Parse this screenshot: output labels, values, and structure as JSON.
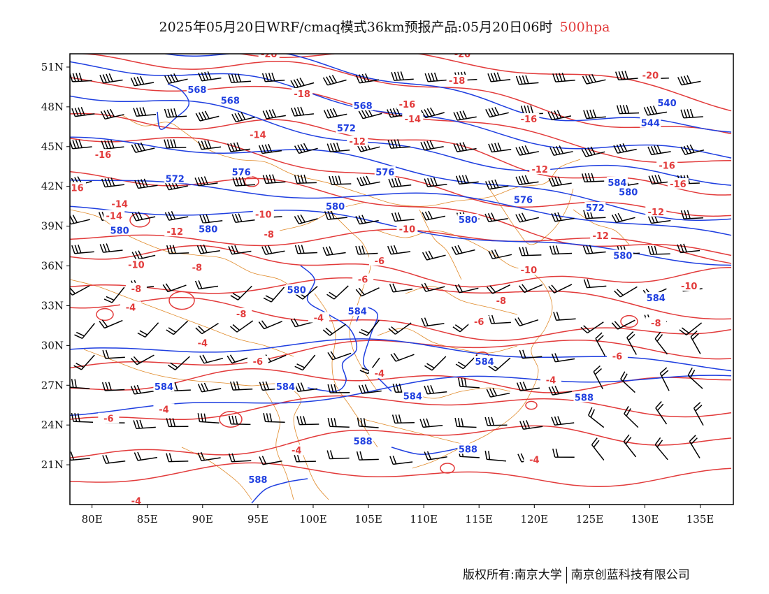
{
  "title": {
    "main": "2025年05月20日WRF/cmaq模式36km预报产品:05月20日06时",
    "level": "500hpa",
    "level_color": "#e23b3b"
  },
  "axes": {
    "lon_ticks": [
      "80E",
      "85E",
      "90E",
      "95E",
      "100E",
      "105E",
      "110E",
      "115E",
      "120E",
      "125E",
      "130E",
      "135E"
    ],
    "lat_ticks": [
      "51N",
      "48N",
      "45N",
      "42N",
      "39N",
      "36N",
      "33N",
      "30N",
      "27N",
      "24N",
      "21N"
    ],
    "lon_range": [
      78,
      138
    ],
    "lat_range": [
      18,
      52
    ]
  },
  "colors": {
    "height_contour": "#1f3fe0",
    "temperature_contour": "#e23b3b",
    "borders": "#e08a2a",
    "wind_barbs": "#000000"
  },
  "height_labels": [
    {
      "text": "568",
      "lon": 89.5,
      "lat": 49.3
    },
    {
      "text": "568",
      "lon": 92.5,
      "lat": 48.5
    },
    {
      "text": "568",
      "lon": 104.5,
      "lat": 48.1
    },
    {
      "text": "572",
      "lon": 103,
      "lat": 46.4
    },
    {
      "text": "572",
      "lon": 87.5,
      "lat": 42.6
    },
    {
      "text": "576",
      "lon": 93.5,
      "lat": 43.1
    },
    {
      "text": "576",
      "lon": 106.5,
      "lat": 43.1
    },
    {
      "text": "580",
      "lon": 102,
      "lat": 40.5
    },
    {
      "text": "580",
      "lon": 82.5,
      "lat": 38.7
    },
    {
      "text": "580",
      "lon": 90.5,
      "lat": 38.8
    },
    {
      "text": "576",
      "lon": 119,
      "lat": 41
    },
    {
      "text": "580",
      "lon": 114,
      "lat": 39.5
    },
    {
      "text": "584",
      "lon": 127.5,
      "lat": 42.3
    },
    {
      "text": "580",
      "lon": 128.5,
      "lat": 41.6
    },
    {
      "text": "572",
      "lon": 125.5,
      "lat": 40.4
    },
    {
      "text": "580",
      "lon": 128,
      "lat": 36.8
    },
    {
      "text": "544",
      "lon": 130.5,
      "lat": 46.8
    },
    {
      "text": "540",
      "lon": 132,
      "lat": 48.3
    },
    {
      "text": "580",
      "lon": 98.5,
      "lat": 34.2
    },
    {
      "text": "584",
      "lon": 104,
      "lat": 32.6
    },
    {
      "text": "584",
      "lon": 131,
      "lat": 33.6
    },
    {
      "text": "584",
      "lon": 115.5,
      "lat": 28.8
    },
    {
      "text": "584",
      "lon": 86.5,
      "lat": 26.9
    },
    {
      "text": "584",
      "lon": 97.5,
      "lat": 26.9
    },
    {
      "text": "584",
      "lon": 109,
      "lat": 26.2
    },
    {
      "text": "588",
      "lon": 124.5,
      "lat": 26.1
    },
    {
      "text": "588",
      "lon": 104.5,
      "lat": 22.8
    },
    {
      "text": "588",
      "lon": 114,
      "lat": 22.2
    },
    {
      "text": "588",
      "lon": 95,
      "lat": 19.9
    }
  ],
  "temperature_labels": [
    {
      "text": "-20",
      "lon": 96,
      "lat": 52
    },
    {
      "text": "-20",
      "lon": 113.5,
      "lat": 52
    },
    {
      "text": "-20",
      "lon": 130.5,
      "lat": 50.4
    },
    {
      "text": "-18",
      "lon": 99,
      "lat": 49
    },
    {
      "text": "-18",
      "lon": 113,
      "lat": 50
    },
    {
      "text": "-16",
      "lon": 108.5,
      "lat": 48.2
    },
    {
      "text": "-14",
      "lon": 109,
      "lat": 47.1
    },
    {
      "text": "-16",
      "lon": 119.5,
      "lat": 47.1
    },
    {
      "text": "-14",
      "lon": 95,
      "lat": 45.9
    },
    {
      "text": "-12",
      "lon": 104,
      "lat": 45.4
    },
    {
      "text": "-16",
      "lon": 81,
      "lat": 44.4
    },
    {
      "text": "-12",
      "lon": 120.5,
      "lat": 43.3
    },
    {
      "text": "-16",
      "lon": 132,
      "lat": 43.6
    },
    {
      "text": "-16",
      "lon": 133,
      "lat": 42.2
    },
    {
      "text": "-16",
      "lon": 78.5,
      "lat": 41.9
    },
    {
      "text": "-14",
      "lon": 82.5,
      "lat": 40.7
    },
    {
      "text": "-14",
      "lon": 82,
      "lat": 39.8
    },
    {
      "text": "-10",
      "lon": 95.5,
      "lat": 39.9
    },
    {
      "text": "-12",
      "lon": 131,
      "lat": 40.1
    },
    {
      "text": "-12",
      "lon": 87.5,
      "lat": 38.6
    },
    {
      "text": "-8",
      "lon": 96,
      "lat": 38.4
    },
    {
      "text": "-10",
      "lon": 108.5,
      "lat": 38.8
    },
    {
      "text": "-12",
      "lon": 126,
      "lat": 38.3
    },
    {
      "text": "-10",
      "lon": 84,
      "lat": 36.1
    },
    {
      "text": "-8",
      "lon": 89.5,
      "lat": 35.9
    },
    {
      "text": "-6",
      "lon": 106,
      "lat": 36.4
    },
    {
      "text": "-6",
      "lon": 104.5,
      "lat": 35
    },
    {
      "text": "-10",
      "lon": 119.5,
      "lat": 35.7
    },
    {
      "text": "-10",
      "lon": 134,
      "lat": 34.5
    },
    {
      "text": "-8",
      "lon": 84,
      "lat": 34.3
    },
    {
      "text": "-8",
      "lon": 117,
      "lat": 33.4
    },
    {
      "text": "-4",
      "lon": 83.5,
      "lat": 32.9
    },
    {
      "text": "-8",
      "lon": 93.5,
      "lat": 32.4
    },
    {
      "text": "-4",
      "lon": 100.5,
      "lat": 32.1
    },
    {
      "text": "-6",
      "lon": 115,
      "lat": 31.8
    },
    {
      "text": "-8",
      "lon": 131,
      "lat": 31.7
    },
    {
      "text": "-4",
      "lon": 90,
      "lat": 30.2
    },
    {
      "text": "-6",
      "lon": 95,
      "lat": 28.8
    },
    {
      "text": "-6",
      "lon": 127.5,
      "lat": 29.2
    },
    {
      "text": "-4",
      "lon": 106,
      "lat": 27.9
    },
    {
      "text": "-4",
      "lon": 121.5,
      "lat": 27.4
    },
    {
      "text": "-4",
      "lon": 86.5,
      "lat": 25.2
    },
    {
      "text": "-6",
      "lon": 81.5,
      "lat": 24.5
    },
    {
      "text": "-4",
      "lon": 98.5,
      "lat": 22.1
    },
    {
      "text": "-4",
      "lon": 120,
      "lat": 21.4
    },
    {
      "text": "-4",
      "lon": 84,
      "lat": 18.3
    }
  ],
  "footer": {
    "left": "版权所有:南京大学",
    "right": "南京创蓝科技有限公司"
  }
}
